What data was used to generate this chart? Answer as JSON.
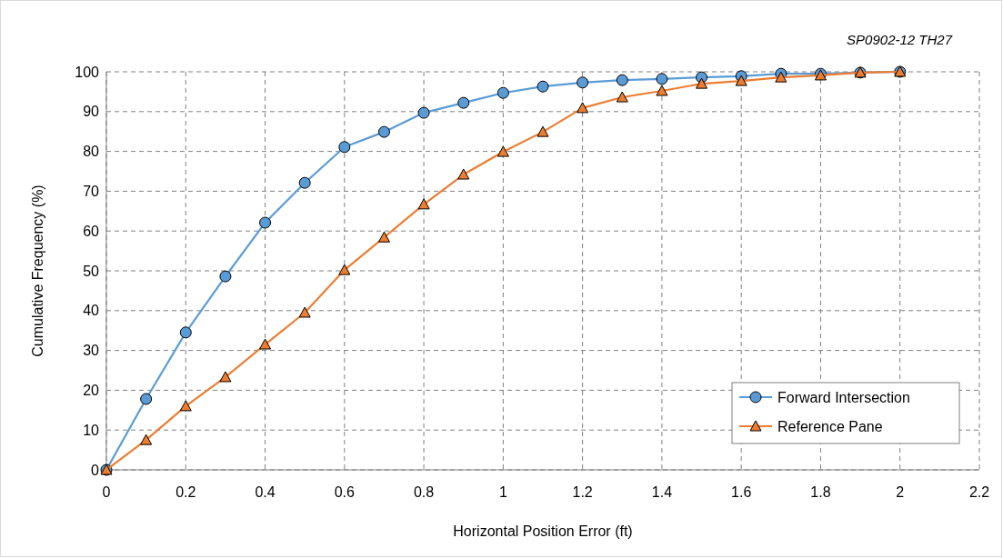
{
  "chart_data": {
    "type": "line",
    "title": "SP0902-12 TH27",
    "xlabel": "Horizontal Position Error (ft)",
    "ylabel": "Cumulative Frequency (%)",
    "x": [
      0,
      0.1,
      0.2,
      0.3,
      0.4,
      0.5,
      0.6,
      0.7,
      0.8,
      0.9,
      1,
      1.1,
      1.2,
      1.3,
      1.4,
      1.5,
      1.6,
      1.7,
      1.8,
      1.9,
      2
    ],
    "series": [
      {
        "name": "Forward Intersection",
        "color": "#5b9bd5",
        "marker": "circle",
        "values": [
          0,
          17.8,
          34.5,
          48.6,
          62.1,
          72.1,
          81.1,
          84.9,
          89.7,
          92.2,
          94.7,
          96.3,
          97.3,
          97.9,
          98.2,
          98.6,
          98.9,
          99.5,
          99.5,
          99.8,
          100
        ]
      },
      {
        "name": "Reference Pane",
        "color": "#ed7d31",
        "marker": "triangle",
        "values": [
          0,
          7.5,
          16,
          23.3,
          31.5,
          39.5,
          50.2,
          58.4,
          66.7,
          74.2,
          79.9,
          84.9,
          90.9,
          93.6,
          95.2,
          97,
          97.7,
          98.6,
          99.1,
          99.8,
          100
        ]
      }
    ],
    "xlim": [
      0,
      2.2
    ],
    "xticks": [
      0,
      0.2,
      0.4,
      0.6,
      0.8,
      1,
      1.2,
      1.4,
      1.6,
      1.8,
      2,
      2.2
    ],
    "ylim": [
      0,
      100
    ],
    "yticks": [
      0,
      10,
      20,
      30,
      40,
      50,
      60,
      70,
      80,
      90,
      100
    ],
    "grid": true,
    "legend": "bottom right",
    "line_style": "solid"
  }
}
